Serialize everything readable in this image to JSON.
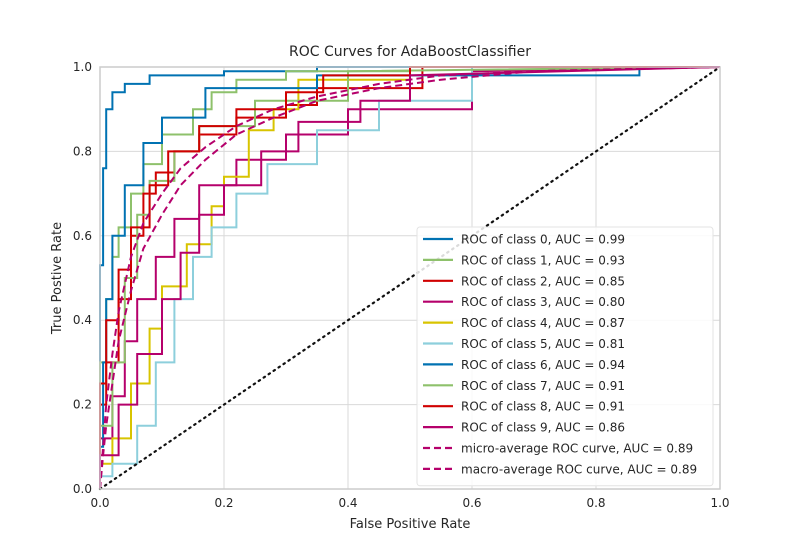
{
  "chart_data": {
    "type": "line",
    "title": "ROC Curves for AdaBoostClassifier",
    "xlabel": "False Positive Rate",
    "ylabel": "True Postive Rate",
    "xlim": [
      0,
      1
    ],
    "ylim": [
      0,
      1
    ],
    "grid": true,
    "legend_position": "lower-right",
    "xticks": [
      "0.0",
      "0.2",
      "0.4",
      "0.6",
      "0.8",
      "1.0"
    ],
    "yticks": [
      "0.0",
      "0.2",
      "0.4",
      "0.6",
      "0.8",
      "1.0"
    ],
    "series": [
      {
        "name": "ROC of class 0, AUC = 0.99",
        "color": "#0072B2",
        "dash": "solid",
        "x": [
          0,
          0,
          0.005,
          0.005,
          0.01,
          0.01,
          0.02,
          0.02,
          0.04,
          0.04,
          0.08,
          0.08,
          0.2,
          0.2,
          0.35,
          0.35,
          1
        ],
        "y": [
          0,
          0.53,
          0.53,
          0.76,
          0.76,
          0.9,
          0.9,
          0.94,
          0.94,
          0.96,
          0.96,
          0.98,
          0.98,
          0.99,
          0.99,
          1,
          1
        ]
      },
      {
        "name": "ROC of class 1, AUC = 0.93",
        "color": "#8EC16B",
        "dash": "solid",
        "x": [
          0,
          0,
          0.01,
          0.01,
          0.02,
          0.02,
          0.03,
          0.03,
          0.05,
          0.05,
          0.07,
          0.07,
          0.1,
          0.1,
          0.15,
          0.15,
          0.18,
          0.18,
          0.22,
          0.22,
          0.3,
          0.3,
          0.5,
          0.5,
          1
        ],
        "y": [
          0,
          0.3,
          0.3,
          0.45,
          0.45,
          0.55,
          0.55,
          0.62,
          0.62,
          0.7,
          0.7,
          0.77,
          0.77,
          0.84,
          0.84,
          0.9,
          0.9,
          0.94,
          0.94,
          0.97,
          0.97,
          0.99,
          0.99,
          1,
          1
        ]
      },
      {
        "name": "ROC of class 2, AUC = 0.85",
        "color": "#D00000",
        "dash": "solid",
        "x": [
          0,
          0,
          0.01,
          0.01,
          0.03,
          0.03,
          0.05,
          0.05,
          0.07,
          0.07,
          0.09,
          0.09,
          0.12,
          0.12,
          0.16,
          0.16,
          0.22,
          0.22,
          0.3,
          0.3,
          0.35,
          0.35,
          0.52,
          0.52,
          1
        ],
        "y": [
          0,
          0.2,
          0.2,
          0.3,
          0.3,
          0.45,
          0.45,
          0.6,
          0.6,
          0.7,
          0.7,
          0.75,
          0.75,
          0.8,
          0.8,
          0.84,
          0.84,
          0.88,
          0.88,
          0.91,
          0.91,
          0.95,
          0.95,
          1,
          1
        ]
      },
      {
        "name": "ROC of class 3, AUC = 0.80",
        "color": "#B5006B",
        "dash": "solid",
        "x": [
          0,
          0,
          0.02,
          0.02,
          0.04,
          0.04,
          0.06,
          0.06,
          0.09,
          0.09,
          0.12,
          0.12,
          0.16,
          0.16,
          0.22,
          0.22,
          0.3,
          0.3,
          0.4,
          0.4,
          0.6,
          0.6,
          1
        ],
        "y": [
          0,
          0.12,
          0.12,
          0.22,
          0.22,
          0.35,
          0.35,
          0.45,
          0.45,
          0.55,
          0.55,
          0.64,
          0.64,
          0.72,
          0.72,
          0.78,
          0.78,
          0.84,
          0.84,
          0.9,
          0.9,
          0.99,
          1
        ]
      },
      {
        "name": "ROC of class 4, AUC = 0.87",
        "color": "#D8C400",
        "dash": "solid",
        "x": [
          0,
          0,
          0.02,
          0.02,
          0.05,
          0.05,
          0.08,
          0.08,
          0.1,
          0.1,
          0.14,
          0.14,
          0.18,
          0.18,
          0.2,
          0.2,
          0.24,
          0.24,
          0.28,
          0.28,
          0.32,
          0.32,
          0.5,
          0.5,
          1
        ],
        "y": [
          0,
          0.06,
          0.06,
          0.12,
          0.12,
          0.25,
          0.25,
          0.38,
          0.38,
          0.48,
          0.48,
          0.58,
          0.58,
          0.67,
          0.67,
          0.74,
          0.74,
          0.85,
          0.85,
          0.9,
          0.9,
          0.97,
          0.97,
          1,
          1
        ]
      },
      {
        "name": "ROC of class 5, AUC = 0.81",
        "color": "#8DCFDC",
        "dash": "solid",
        "x": [
          0,
          0,
          0.02,
          0.02,
          0.06,
          0.06,
          0.09,
          0.09,
          0.12,
          0.12,
          0.15,
          0.15,
          0.18,
          0.18,
          0.22,
          0.22,
          0.27,
          0.27,
          0.35,
          0.35,
          0.45,
          0.45,
          0.6,
          0.6,
          1
        ],
        "y": [
          0,
          0.03,
          0.03,
          0.06,
          0.06,
          0.15,
          0.15,
          0.3,
          0.3,
          0.45,
          0.45,
          0.55,
          0.55,
          0.62,
          0.62,
          0.7,
          0.7,
          0.77,
          0.77,
          0.85,
          0.85,
          0.92,
          0.92,
          1,
          1
        ]
      },
      {
        "name": "ROC of class 6, AUC = 0.94",
        "color": "#0072B2",
        "dash": "solid",
        "x": [
          0,
          0,
          0.005,
          0.005,
          0.01,
          0.01,
          0.02,
          0.02,
          0.04,
          0.04,
          0.07,
          0.07,
          0.1,
          0.1,
          0.17,
          0.17,
          0.35,
          0.35,
          0.87,
          0.87,
          1
        ],
        "y": [
          0,
          0.1,
          0.1,
          0.3,
          0.3,
          0.45,
          0.45,
          0.6,
          0.6,
          0.72,
          0.72,
          0.82,
          0.82,
          0.88,
          0.88,
          0.95,
          0.95,
          0.98,
          0.98,
          1,
          1
        ]
      },
      {
        "name": "ROC of class 7, AUC = 0.91",
        "color": "#8EC16B",
        "dash": "solid",
        "x": [
          0,
          0,
          0.02,
          0.02,
          0.04,
          0.04,
          0.06,
          0.06,
          0.08,
          0.08,
          0.12,
          0.12,
          0.16,
          0.16,
          0.25,
          0.25,
          0.4,
          0.4,
          1
        ],
        "y": [
          0,
          0.15,
          0.15,
          0.3,
          0.3,
          0.5,
          0.5,
          0.65,
          0.65,
          0.73,
          0.73,
          0.8,
          0.8,
          0.86,
          0.86,
          0.92,
          0.92,
          0.99,
          1
        ]
      },
      {
        "name": "ROC of class 8, AUC = 0.91",
        "color": "#D00000",
        "dash": "solid",
        "x": [
          0,
          0,
          0.01,
          0.01,
          0.03,
          0.03,
          0.05,
          0.05,
          0.08,
          0.08,
          0.11,
          0.11,
          0.16,
          0.16,
          0.22,
          0.22,
          0.3,
          0.3,
          0.36,
          0.36,
          0.5,
          0.5,
          1
        ],
        "y": [
          0,
          0.25,
          0.25,
          0.4,
          0.4,
          0.52,
          0.52,
          0.62,
          0.62,
          0.72,
          0.72,
          0.8,
          0.8,
          0.86,
          0.86,
          0.9,
          0.9,
          0.94,
          0.94,
          0.98,
          0.98,
          1,
          1
        ]
      },
      {
        "name": "ROC of class 9, AUC = 0.86",
        "color": "#B5006B",
        "dash": "solid",
        "x": [
          0,
          0,
          0.03,
          0.03,
          0.06,
          0.06,
          0.1,
          0.1,
          0.13,
          0.13,
          0.16,
          0.16,
          0.2,
          0.2,
          0.26,
          0.26,
          0.32,
          0.32,
          0.42,
          0.42,
          0.5,
          0.5,
          1
        ],
        "y": [
          0,
          0.08,
          0.08,
          0.2,
          0.2,
          0.32,
          0.32,
          0.45,
          0.45,
          0.56,
          0.56,
          0.65,
          0.65,
          0.72,
          0.72,
          0.8,
          0.8,
          0.87,
          0.87,
          0.92,
          0.92,
          0.98,
          1
        ]
      },
      {
        "name": "micro-average ROC curve, AUC = 0.89",
        "color": "#B5006B",
        "dash": "dashed",
        "x": [
          0,
          0.005,
          0.01,
          0.02,
          0.03,
          0.05,
          0.07,
          0.1,
          0.13,
          0.17,
          0.22,
          0.28,
          0.35,
          0.45,
          0.55,
          0.7,
          1
        ],
        "y": [
          0,
          0.1,
          0.2,
          0.32,
          0.42,
          0.55,
          0.63,
          0.7,
          0.76,
          0.81,
          0.86,
          0.9,
          0.93,
          0.96,
          0.98,
          0.99,
          1
        ]
      },
      {
        "name": "macro-average ROC curve, AUC = 0.89",
        "color": "#B5006B",
        "dash": "dashed",
        "x": [
          0,
          0.005,
          0.01,
          0.02,
          0.03,
          0.05,
          0.07,
          0.1,
          0.13,
          0.17,
          0.22,
          0.28,
          0.35,
          0.45,
          0.55,
          0.7,
          1
        ],
        "y": [
          0,
          0.08,
          0.15,
          0.25,
          0.35,
          0.47,
          0.57,
          0.65,
          0.72,
          0.78,
          0.84,
          0.88,
          0.92,
          0.95,
          0.97,
          0.99,
          1
        ]
      },
      {
        "name": "",
        "color": "#111111",
        "dash": "dotted",
        "legend": false,
        "x": [
          0,
          1
        ],
        "y": [
          0,
          1
        ]
      }
    ]
  }
}
